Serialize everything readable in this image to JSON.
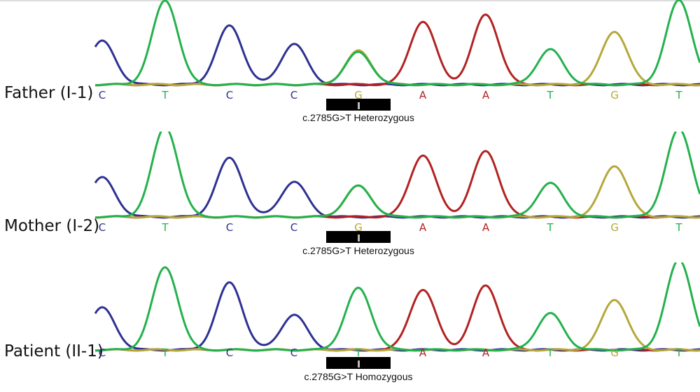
{
  "colors": {
    "A": "#b22222",
    "C": "#2e3192",
    "G": "#b5a83a",
    "T": "#23b14d"
  },
  "panels": [
    {
      "sample": "Father (I-1)",
      "bases": [
        "C",
        "T",
        "C",
        "C",
        "G",
        "A",
        "A",
        "T",
        "G",
        "T"
      ],
      "variant": "c.2785G>T Heterozygous",
      "peak_heights": {
        "C0": 62,
        "T1": 120,
        "C2": 84,
        "C3": 58,
        "G4": 48,
        "T4": 46,
        "A5": 90,
        "A6": 100,
        "T7": 50,
        "G8": 76,
        "T9": 120
      }
    },
    {
      "sample": "Mother (I-2)",
      "bases": [
        "C",
        "T",
        "C",
        "C",
        "G",
        "A",
        "A",
        "T",
        "G",
        "T"
      ],
      "variant": "c.2785G>T Heterozygous",
      "peak_heights": {
        "C0": 56,
        "T1": 128,
        "C2": 84,
        "C3": 50,
        "G4": 44,
        "T4": 44,
        "A5": 88,
        "A6": 94,
        "T7": 48,
        "G8": 73,
        "T9": 125
      }
    },
    {
      "sample": "Patient (II-1)",
      "bases": [
        "C",
        "T",
        "C",
        "C",
        "T",
        "A",
        "A",
        "T",
        "G",
        "T"
      ],
      "variant": "c.2785G>T Homozygous",
      "peak_heights": {
        "C0": 60,
        "T1": 118,
        "C2": 96,
        "C3": 50,
        "T4": 88,
        "A5": 86,
        "A6": 92,
        "T7": 52,
        "G8": 72,
        "T9": 128
      }
    }
  ]
}
